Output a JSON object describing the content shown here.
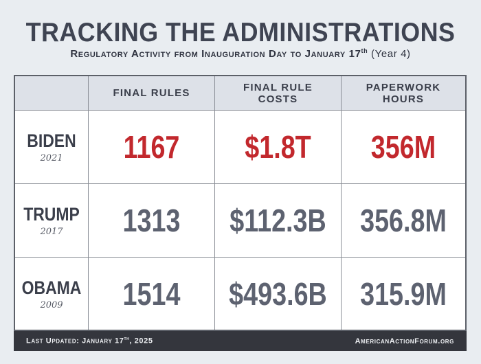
{
  "header": {
    "title": "TRACKING THE ADMINISTRATIONS",
    "subtitle_main": "Regulatory Activity from Inauguration Day to January 17",
    "subtitle_sup": "th",
    "subtitle_tail": " (Year 4)"
  },
  "table": {
    "columns": [
      "FINAL RULES",
      "FINAL RULE COSTS",
      "PAPERWORK HOURS"
    ],
    "columns_lines": [
      [
        "FINAL RULES"
      ],
      [
        "FINAL RULE",
        "COSTS"
      ],
      [
        "PAPERWORK",
        "HOURS"
      ]
    ],
    "rows": [
      {
        "name": "BIDEN",
        "year": "2021",
        "values": [
          "1167",
          "$1.8T",
          "356M"
        ]
      },
      {
        "name": "TRUMP",
        "year": "2017",
        "values": [
          "1313",
          "$112.3B",
          "356.8M"
        ]
      },
      {
        "name": "OBAMA",
        "year": "2009",
        "values": [
          "1514",
          "$493.6B",
          "315.9M"
        ]
      }
    ]
  },
  "footer": {
    "updated_main": "Last Updated: January 17",
    "updated_sup": "th",
    "updated_tail": ", 2025",
    "site": "AmericanActionForum.org"
  },
  "colors": {
    "highlight": "#c2282d",
    "value_gray": "#5d6270",
    "footer_bg": "#34363d",
    "header_band": "#dde1e8"
  }
}
